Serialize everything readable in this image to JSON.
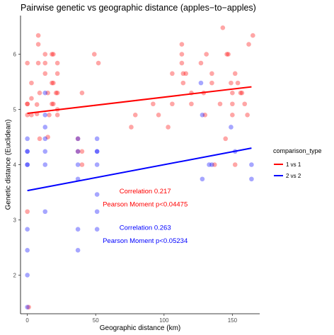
{
  "chart_data": {
    "type": "scatter",
    "title": "Pairwise genetic vs geographic distance (apples−to−apples)",
    "xlabel": "Geographic distance (km)",
    "ylabel": "Genetic distance (Euclidean)",
    "xlim": [
      -5,
      170
    ],
    "ylim": [
      1.3,
      6.7
    ],
    "x_ticks": [
      0,
      50,
      100,
      150
    ],
    "y_ticks": [
      2,
      3,
      4,
      5,
      6
    ],
    "x_tick_labels": [
      "0",
      "50",
      "100",
      "150"
    ],
    "y_tick_labels": [
      "2",
      "3",
      "4",
      "5",
      "6"
    ],
    "grid": false,
    "legend": {
      "title": "comparison_type",
      "placement": "right",
      "entries": [
        "1 vs 1",
        "2 vs 2"
      ]
    },
    "series": [
      {
        "name": "1 vs 1",
        "color": "#ff0000",
        "trend": {
          "x": [
            0,
            164
          ],
          "y": [
            4.93,
            5.41
          ]
        },
        "points": [
          [
            0,
            5.84
          ],
          [
            0,
            5.1
          ],
          [
            0,
            5.1
          ],
          [
            0,
            4.9
          ],
          [
            0,
            3.15
          ],
          [
            1,
            1.42
          ],
          [
            3,
            5.48
          ],
          [
            3,
            5.2
          ],
          [
            3,
            4.9
          ],
          [
            7,
            5.09
          ],
          [
            7,
            4.92
          ],
          [
            8,
            6.34
          ],
          [
            8,
            6.18
          ],
          [
            8,
            5.84
          ],
          [
            9,
            5.3
          ],
          [
            9,
            4.47
          ],
          [
            13,
            6.0
          ],
          [
            13,
            5.84
          ],
          [
            13,
            5.65
          ],
          [
            15,
            5.3
          ],
          [
            15,
            4.5
          ],
          [
            16,
            4.9
          ],
          [
            18,
            6.0
          ],
          [
            19,
            6.0
          ],
          [
            18,
            5.48
          ],
          [
            19,
            5.48
          ],
          [
            18,
            5.1
          ],
          [
            19,
            5.1
          ],
          [
            22,
            5.84
          ],
          [
            21,
            5.3
          ],
          [
            22,
            5.3
          ],
          [
            22,
            5.65
          ],
          [
            22,
            5.0
          ],
          [
            22,
            4.9
          ],
          [
            37,
            4.47
          ],
          [
            37,
            4.24
          ],
          [
            40,
            5.3
          ],
          [
            40,
            4.24
          ],
          [
            40,
            4.0
          ],
          [
            49,
            6.0
          ],
          [
            52,
            5.84
          ],
          [
            76,
            4.68
          ],
          [
            79,
            4.9
          ],
          [
            92,
            5.1
          ],
          [
            96,
            4.9
          ],
          [
            103,
            4.68
          ],
          [
            106,
            5.65
          ],
          [
            106,
            5.1
          ],
          [
            113,
            6.18
          ],
          [
            113,
            6.0
          ],
          [
            113,
            5.84
          ],
          [
            114,
            5.65
          ],
          [
            114,
            5.48
          ],
          [
            116,
            5.65
          ],
          [
            120,
            5.3
          ],
          [
            120,
            5.1
          ],
          [
            127,
            5.84
          ],
          [
            129,
            5.3
          ],
          [
            130,
            4.9
          ],
          [
            131,
            6.0
          ],
          [
            135,
            5.65
          ],
          [
            135,
            5.48
          ],
          [
            137,
            4.0
          ],
          [
            141,
            5.1
          ],
          [
            143,
            6.48
          ],
          [
            145,
            4.47
          ],
          [
            146,
            6.0
          ],
          [
            147,
            6.0
          ],
          [
            149,
            5.48
          ],
          [
            150,
            5.3
          ],
          [
            150,
            5.1
          ],
          [
            150,
            4.9
          ],
          [
            152,
            4.0
          ],
          [
            152,
            5.65
          ],
          [
            154,
            5.48
          ],
          [
            156,
            5.3
          ],
          [
            157,
            5.3
          ],
          [
            159,
            5.1
          ],
          [
            161,
            4.9
          ],
          [
            162,
            6.18
          ],
          [
            165,
            6.34
          ]
        ]
      },
      {
        "name": "2 vs 2",
        "color": "#0000ff",
        "trend": {
          "x": [
            0,
            164
          ],
          "y": [
            3.53,
            4.3
          ]
        },
        "points": [
          [
            0,
            4.47
          ],
          [
            0,
            4.24
          ],
          [
            0,
            4.24
          ],
          [
            0,
            4.0
          ],
          [
            0,
            4.0
          ],
          [
            0,
            2.83
          ],
          [
            0,
            2.45
          ],
          [
            0,
            2.0
          ],
          [
            0,
            1.42
          ],
          [
            13,
            5.3
          ],
          [
            13,
            4.9
          ],
          [
            13,
            4.68
          ],
          [
            13,
            4.47
          ],
          [
            13,
            4.24
          ],
          [
            13,
            4.0
          ],
          [
            13,
            3.15
          ],
          [
            37,
            4.47
          ],
          [
            37,
            4.24
          ],
          [
            37,
            4.0
          ],
          [
            37,
            3.74
          ],
          [
            37,
            2.83
          ],
          [
            37,
            2.45
          ],
          [
            51,
            4.47
          ],
          [
            51,
            4.24
          ],
          [
            51,
            4.24
          ],
          [
            51,
            4.0
          ],
          [
            51,
            3.46
          ],
          [
            51,
            3.15
          ],
          [
            51,
            2.83
          ],
          [
            127,
            5.48
          ],
          [
            128,
            4.9
          ],
          [
            128,
            3.74
          ],
          [
            133,
            4.0
          ],
          [
            135,
            4.0
          ],
          [
            149,
            4.68
          ],
          [
            152,
            4.24
          ],
          [
            164,
            4.0
          ],
          [
            164,
            3.74
          ]
        ]
      }
    ],
    "annotations": [
      {
        "text": "Correlation 0.217",
        "color": "#ff0000",
        "x": 80,
        "y": 3.52
      },
      {
        "text": "Pearson Moment p<0.04475",
        "color": "#ff0000",
        "x": 80,
        "y": 3.28
      },
      {
        "text": "Correlation 0.263",
        "color": "#0000ff",
        "x": 80,
        "y": 2.86
      },
      {
        "text": "Pearson Moment p<0.05234",
        "color": "#0000ff",
        "x": 80,
        "y": 2.62
      }
    ]
  }
}
